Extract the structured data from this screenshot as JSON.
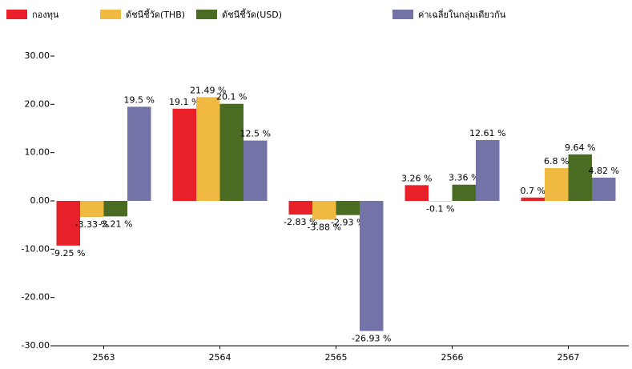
{
  "chart_data": {
    "type": "bar",
    "categories": [
      "2563",
      "2564",
      "2565",
      "2566",
      "2567"
    ],
    "series": [
      {
        "name": "กองทุน",
        "color": "#e8202a",
        "values": [
          -9.25,
          19.1,
          -2.83,
          3.26,
          0.7
        ],
        "value_labels": [
          "-9.25 %",
          "19.1 %",
          "-2.83 %",
          "3.26 %",
          "0.7 %"
        ]
      },
      {
        "name": "ดัชนีชี้วัด(THB)",
        "color": "#f0b942",
        "values": [
          -3.33,
          21.49,
          -3.88,
          -0.1,
          6.8
        ],
        "value_labels": [
          "-3.33 %",
          "21.49 %",
          "-3.88 %",
          "-0.1 %",
          "6.8 %"
        ]
      },
      {
        "name": "ดัชนีชี้วัด(USD)",
        "color": "#4a6b22",
        "values": [
          -3.21,
          20.1,
          -2.93,
          3.36,
          9.64
        ],
        "value_labels": [
          "-3.21 %",
          "20.1 %",
          "-2.93 %",
          "3.36 %",
          "9.64 %"
        ]
      },
      {
        "name": "ค่าเฉลี่ยในกลุ่มเดียวกัน",
        "color": "#7473a8",
        "values": [
          19.5,
          12.5,
          -26.93,
          12.61,
          4.82
        ],
        "value_labels": [
          "19.5 %",
          "12.5 %",
          "-26.93 %",
          "12.61 %",
          "4.82 %"
        ]
      }
    ],
    "ylim": [
      -30,
      30
    ],
    "yticks": [
      {
        "value": 30,
        "label": "30.00"
      },
      {
        "value": 20,
        "label": "20.00"
      },
      {
        "value": 10,
        "label": "10.00"
      },
      {
        "value": 0,
        "label": "0.00"
      },
      {
        "value": -10,
        "label": "-10.00"
      },
      {
        "value": -20,
        "label": "-20.00"
      },
      {
        "value": -30,
        "label": "-30.00"
      }
    ],
    "legend": "top-left"
  }
}
